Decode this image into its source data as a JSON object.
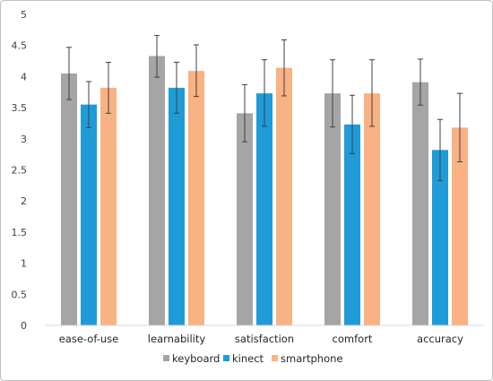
{
  "chart_data": {
    "type": "bar",
    "title": "",
    "xlabel": "",
    "ylabel": "",
    "ylim": [
      0,
      5
    ],
    "yticks": [
      "0",
      "0.5",
      "1",
      "1.5",
      "2",
      "2.5",
      "3",
      "3.5",
      "4",
      "4.5",
      "5"
    ],
    "grid": false,
    "legend_position": "bottom",
    "categories": [
      "ease-of-use",
      "learnability",
      "satisfaction",
      "comfort",
      "accuracy"
    ],
    "series": [
      {
        "name": "keyboard",
        "color": "#a5a5a5",
        "values": [
          4.05,
          4.33,
          3.41,
          3.73,
          3.91
        ],
        "err_low": [
          3.63,
          3.99,
          2.95,
          3.19,
          3.54
        ],
        "err_high": [
          4.47,
          4.66,
          3.87,
          4.27,
          4.28
        ]
      },
      {
        "name": "kinect",
        "color": "#1f9bd8",
        "values": [
          3.55,
          3.82,
          3.73,
          3.23,
          2.82
        ],
        "err_low": [
          3.18,
          3.41,
          3.2,
          2.76,
          2.33
        ],
        "err_high": [
          3.92,
          4.23,
          4.27,
          3.7,
          3.31
        ]
      },
      {
        "name": "smartphone",
        "color": "#f8b283",
        "values": [
          3.82,
          4.09,
          4.14,
          3.73,
          3.18
        ],
        "err_low": [
          3.41,
          3.68,
          3.69,
          3.2,
          2.63
        ],
        "err_high": [
          4.23,
          4.51,
          4.59,
          4.27,
          3.73
        ]
      }
    ]
  }
}
